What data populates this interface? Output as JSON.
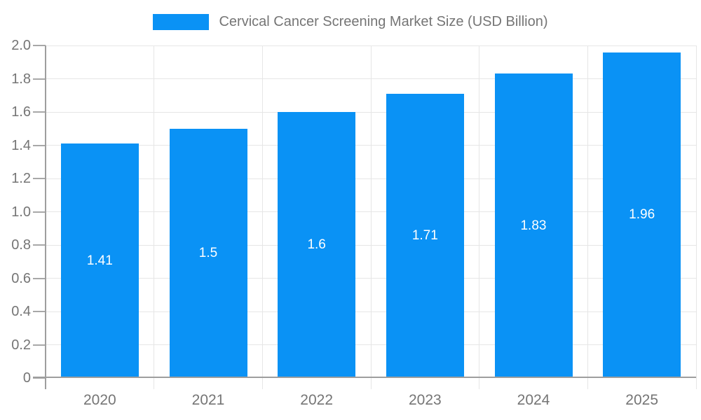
{
  "legend": {
    "label": "Cervical Cancer Screening Market Size (USD Billion)"
  },
  "colors": {
    "bar": "#0a92f5",
    "axis": "#9e9e9e",
    "tick": "#a8a8a8",
    "grid": "#e6e6e6",
    "axis_label": "#757575",
    "value_label": "#ffffff",
    "background": "#ffffff"
  },
  "chart_data": {
    "type": "bar",
    "title": "Cervical Cancer Screening Market Size (USD Billion)",
    "categories": [
      "2020",
      "2021",
      "2022",
      "2023",
      "2024",
      "2025"
    ],
    "values": [
      1.41,
      1.5,
      1.6,
      1.71,
      1.83,
      1.96
    ],
    "value_labels": [
      "1.41",
      "1.5",
      "1.6",
      "1.71",
      "1.83",
      "1.96"
    ],
    "xlabel": "",
    "ylabel": "",
    "ylim": [
      0,
      2
    ],
    "ytick_step": 0.2,
    "ytick_labels": [
      "0",
      "0.2",
      "0.4",
      "0.6",
      "0.8",
      "1.0",
      "1.2",
      "1.4",
      "1.6",
      "1.8",
      "2.0"
    ],
    "grid": true,
    "legend_position": "top-center",
    "bar_label_position": "center"
  }
}
